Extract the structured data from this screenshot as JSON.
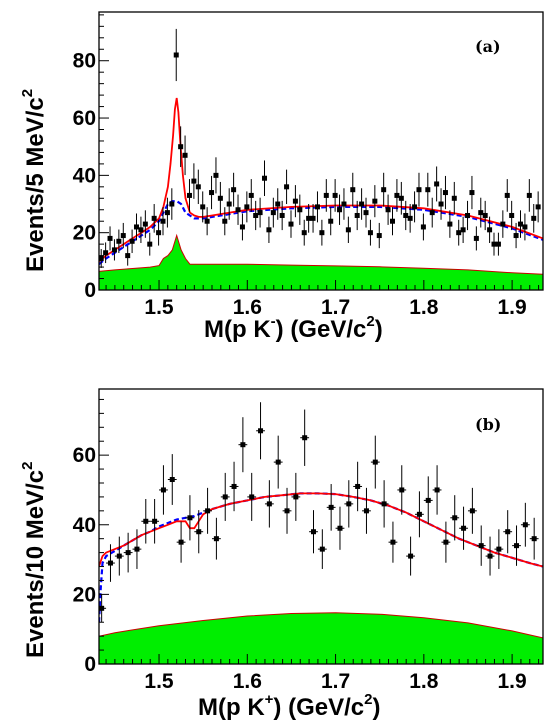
{
  "chart_data": [
    {
      "type": "scatter",
      "panel_label": "(a)",
      "xlabel": {
        "main": "M(p K",
        "sup": "-",
        "tail": ") (GeV/c",
        "sup2": "2",
        "end": ")"
      },
      "ylabel": {
        "main": "Events/5 MeV/c",
        "sup": "2"
      },
      "xlim": [
        1.432,
        1.935
      ],
      "ylim": [
        0,
        97
      ],
      "xticks": [
        1.5,
        1.6,
        1.7,
        1.8,
        1.9
      ],
      "xtick_labels": [
        "1.5",
        "1.6",
        "1.7",
        "1.8",
        "1.9"
      ],
      "yticks": [
        0,
        20,
        40,
        60,
        80
      ],
      "ytick_labels": [
        "0",
        "20",
        "40",
        "60",
        "80"
      ],
      "bin_width": 0.005,
      "points": {
        "x": [
          1.4345,
          1.4395,
          1.4445,
          1.4495,
          1.4545,
          1.4595,
          1.4645,
          1.4695,
          1.4745,
          1.4795,
          1.4845,
          1.4895,
          1.4945,
          1.4995,
          1.5045,
          1.5095,
          1.5145,
          1.5195,
          1.5245,
          1.5295,
          1.5345,
          1.5395,
          1.5445,
          1.5495,
          1.5545,
          1.5595,
          1.5645,
          1.5695,
          1.5745,
          1.5795,
          1.5845,
          1.5895,
          1.5945,
          1.5995,
          1.6045,
          1.6095,
          1.6145,
          1.6195,
          1.6245,
          1.6295,
          1.6345,
          1.6395,
          1.6445,
          1.6495,
          1.6545,
          1.6595,
          1.6645,
          1.6695,
          1.6745,
          1.6795,
          1.6845,
          1.6895,
          1.6945,
          1.6995,
          1.7045,
          1.7095,
          1.7145,
          1.7195,
          1.7245,
          1.7295,
          1.7345,
          1.7395,
          1.7445,
          1.7495,
          1.7545,
          1.7595,
          1.7645,
          1.7695,
          1.7745,
          1.7795,
          1.7845,
          1.7895,
          1.7945,
          1.7995,
          1.8045,
          1.8095,
          1.8145,
          1.8195,
          1.8245,
          1.8295,
          1.8345,
          1.8395,
          1.8445,
          1.8495,
          1.8545,
          1.8595,
          1.8645,
          1.8695,
          1.8745,
          1.8795,
          1.8845,
          1.8895,
          1.8945,
          1.8995,
          1.9045,
          1.9095,
          1.9145,
          1.9195,
          1.9245,
          1.9295
        ],
        "y": [
          11,
          13,
          18,
          14,
          17,
          19,
          12,
          17,
          22,
          21,
          23,
          16,
          25,
          20,
          24,
          27,
          30,
          82,
          50,
          47,
          33,
          38,
          36,
          29,
          24,
          34,
          40,
          32,
          24,
          30,
          35,
          28,
          22,
          29,
          33,
          26,
          27,
          39,
          21,
          27,
          30,
          26,
          36,
          23,
          31,
          28,
          20,
          25,
          25,
          29,
          20,
          33,
          24,
          33,
          28,
          30,
          21,
          35,
          26,
          30,
          27,
          20,
          31,
          19,
          35,
          28,
          24,
          33,
          32,
          26,
          25,
          29,
          35,
          22,
          35,
          27,
          37,
          30,
          34,
          23,
          32,
          20,
          21,
          26,
          34,
          18,
          27,
          26,
          21,
          16,
          16,
          23,
          33,
          26,
          19,
          23,
          22,
          33,
          25,
          29
        ],
        "err": [
          3.3,
          3.6,
          4.2,
          3.7,
          4.1,
          4.4,
          3.5,
          4.1,
          4.7,
          4.6,
          4.8,
          4.0,
          5.0,
          4.5,
          4.9,
          5.2,
          5.5,
          9.1,
          7.1,
          6.9,
          5.7,
          6.2,
          6.0,
          5.4,
          4.9,
          5.8,
          6.3,
          5.7,
          4.9,
          5.5,
          5.9,
          5.3,
          4.7,
          5.4,
          5.7,
          5.1,
          5.2,
          6.2,
          4.6,
          5.2,
          5.5,
          5.1,
          6.0,
          4.8,
          5.6,
          5.3,
          4.5,
          5.0,
          5.0,
          5.4,
          4.5,
          5.7,
          4.9,
          5.7,
          5.3,
          5.5,
          4.6,
          5.9,
          5.1,
          5.5,
          5.2,
          4.5,
          5.6,
          4.4,
          5.9,
          5.3,
          4.9,
          5.7,
          5.7,
          5.1,
          5.0,
          5.4,
          5.9,
          4.7,
          5.9,
          5.2,
          6.1,
          5.5,
          5.8,
          4.8,
          5.7,
          4.5,
          4.6,
          5.1,
          5.8,
          4.2,
          5.2,
          5.1,
          4.6,
          4.0,
          4.0,
          4.8,
          5.7,
          5.1,
          4.4,
          4.8,
          4.7,
          5.7,
          5.0,
          5.4
        ]
      },
      "total_fit": {
        "x": [
          1.432,
          1.44,
          1.45,
          1.46,
          1.47,
          1.48,
          1.49,
          1.5,
          1.505,
          1.51,
          1.513,
          1.516,
          1.518,
          1.52,
          1.522,
          1.524,
          1.527,
          1.53,
          1.535,
          1.54,
          1.545,
          1.55,
          1.56,
          1.58,
          1.6,
          1.65,
          1.7,
          1.75,
          1.8,
          1.85,
          1.9,
          1.935
        ],
        "y": [
          10,
          12,
          14,
          16,
          18,
          20,
          22,
          25,
          29,
          36,
          44,
          54,
          63,
          67,
          62,
          52,
          40,
          32,
          27,
          26,
          25.5,
          25.5,
          26,
          27,
          28,
          29,
          29.5,
          29.5,
          28.5,
          26,
          22,
          18
        ]
      },
      "background_fit": {
        "x": [
          1.432,
          1.44,
          1.45,
          1.46,
          1.47,
          1.48,
          1.49,
          1.5,
          1.505,
          1.51,
          1.515,
          1.52,
          1.525,
          1.53,
          1.535,
          1.54,
          1.545,
          1.55,
          1.56,
          1.58,
          1.6,
          1.65,
          1.7,
          1.75,
          1.8,
          1.85,
          1.9,
          1.935
        ],
        "y": [
          9,
          11,
          13,
          15,
          17,
          19,
          21,
          24,
          27,
          30,
          31,
          31,
          30,
          27,
          26,
          25,
          25,
          25,
          25.5,
          26.5,
          27.5,
          28.5,
          29,
          29,
          28,
          25.5,
          21.5,
          17.5
        ]
      },
      "shaded_background": {
        "x": [
          1.432,
          1.45,
          1.47,
          1.49,
          1.5,
          1.505,
          1.51,
          1.515,
          1.52,
          1.525,
          1.53,
          1.535,
          1.54,
          1.55,
          1.6,
          1.65,
          1.7,
          1.75,
          1.8,
          1.85,
          1.9,
          1.935
        ],
        "y": [
          6.5,
          7,
          7.5,
          8,
          8.5,
          11,
          12,
          14,
          19,
          14,
          11,
          9,
          9,
          9,
          9,
          8.7,
          8.4,
          8.1,
          7.6,
          7,
          6,
          5.5
        ]
      },
      "colors": {
        "points": "#000000",
        "total_fit": "#ff0000",
        "background_fit": "#0000ff",
        "shaded": "#00ee00",
        "shaded_edge": "#cc0000"
      }
    },
    {
      "type": "scatter",
      "panel_label": "(b)",
      "xlabel": {
        "main": "M(p K",
        "sup": "+",
        "tail": ") (GeV/c",
        "sup2": "2",
        "end": ")"
      },
      "ylabel": {
        "main": "Events/10 MeV/c",
        "sup": "2"
      },
      "xlim": [
        1.432,
        1.935
      ],
      "ylim": [
        0,
        79
      ],
      "xticks": [
        1.5,
        1.6,
        1.7,
        1.8,
        1.9
      ],
      "xtick_labels": [
        "1.5",
        "1.6",
        "1.7",
        "1.8",
        "1.9"
      ],
      "yticks": [
        0,
        20,
        40,
        60
      ],
      "ytick_labels": [
        "0",
        "20",
        "40",
        "60"
      ],
      "bin_width": 0.01,
      "points": {
        "x": [
          1.435,
          1.445,
          1.455,
          1.465,
          1.475,
          1.485,
          1.495,
          1.505,
          1.515,
          1.525,
          1.535,
          1.545,
          1.555,
          1.565,
          1.575,
          1.585,
          1.595,
          1.605,
          1.615,
          1.625,
          1.635,
          1.645,
          1.655,
          1.665,
          1.675,
          1.685,
          1.695,
          1.705,
          1.715,
          1.725,
          1.735,
          1.745,
          1.755,
          1.765,
          1.775,
          1.785,
          1.795,
          1.805,
          1.815,
          1.825,
          1.835,
          1.845,
          1.855,
          1.865,
          1.875,
          1.885,
          1.895,
          1.905,
          1.915,
          1.925
        ],
        "y": [
          16,
          29,
          31,
          32,
          33,
          41,
          41,
          50,
          53,
          35,
          42,
          38,
          44,
          36,
          48,
          51,
          63,
          48,
          67,
          46,
          58,
          44,
          48,
          65,
          38,
          33,
          45,
          39,
          46,
          51,
          44,
          58,
          46,
          35,
          50,
          31,
          43,
          47,
          50,
          35,
          42,
          39,
          44,
          34,
          31,
          33,
          38,
          34,
          40,
          36
        ],
        "err": [
          4,
          5.4,
          5.6,
          5.7,
          5.7,
          6.4,
          6.4,
          7.1,
          7.3,
          5.9,
          6.5,
          6.2,
          6.6,
          6.0,
          6.9,
          7.1,
          7.9,
          6.9,
          8.2,
          6.8,
          7.6,
          6.6,
          6.9,
          8.1,
          6.2,
          5.7,
          6.7,
          6.2,
          6.8,
          7.1,
          6.6,
          7.6,
          6.8,
          5.9,
          7.1,
          5.6,
          6.6,
          6.9,
          7.1,
          5.9,
          6.5,
          6.2,
          6.6,
          5.8,
          5.6,
          5.7,
          6.2,
          5.8,
          6.3,
          6.0
        ]
      },
      "total_fit": {
        "x": [
          1.432,
          1.436,
          1.44,
          1.45,
          1.46,
          1.47,
          1.48,
          1.49,
          1.5,
          1.51,
          1.52,
          1.53,
          1.535,
          1.54,
          1.545,
          1.55,
          1.56,
          1.58,
          1.6,
          1.62,
          1.64,
          1.66,
          1.68,
          1.7,
          1.72,
          1.74,
          1.76,
          1.78,
          1.8,
          1.82,
          1.84,
          1.86,
          1.88,
          1.9,
          1.92,
          1.935
        ],
        "y": [
          28,
          31,
          32,
          33,
          34,
          35.5,
          37,
          38,
          39,
          40,
          41,
          41,
          39,
          39,
          41,
          43,
          44.5,
          46,
          47,
          48,
          48.5,
          49,
          49,
          48.8,
          48,
          47,
          45.5,
          43.5,
          41,
          38.5,
          36,
          34,
          32,
          30.5,
          29,
          28
        ]
      },
      "background_fit": {
        "x": [
          1.432,
          1.434,
          1.436,
          1.44,
          1.45,
          1.46,
          1.47,
          1.48,
          1.49,
          1.5,
          1.51,
          1.52,
          1.53,
          1.54,
          1.55,
          1.56,
          1.58,
          1.6,
          1.62,
          1.64,
          1.66,
          1.68,
          1.7,
          1.72,
          1.74,
          1.76,
          1.78,
          1.8,
          1.82,
          1.84,
          1.86,
          1.88,
          1.9,
          1.92,
          1.935
        ],
        "y": [
          12,
          22,
          29,
          31,
          32.5,
          34,
          35.5,
          37,
          38,
          39.5,
          40.5,
          41.5,
          42,
          42.5,
          43.5,
          44.5,
          46,
          47,
          48,
          48.5,
          49,
          49,
          48.8,
          48,
          47,
          45.5,
          43.5,
          41,
          38.5,
          36,
          34,
          32,
          30.5,
          29,
          28
        ]
      },
      "shaded_background": {
        "x": [
          1.432,
          1.45,
          1.5,
          1.55,
          1.6,
          1.65,
          1.7,
          1.75,
          1.8,
          1.85,
          1.9,
          1.935
        ],
        "y": [
          8,
          9,
          11,
          12.5,
          13.8,
          14.5,
          14.7,
          14.3,
          13.3,
          11.8,
          9.5,
          7.5
        ]
      },
      "colors": {
        "points": "#000000",
        "total_fit": "#ff0000",
        "background_fit": "#0000ff",
        "shaded": "#00ee00",
        "shaded_edge": "#cc0000"
      }
    }
  ]
}
